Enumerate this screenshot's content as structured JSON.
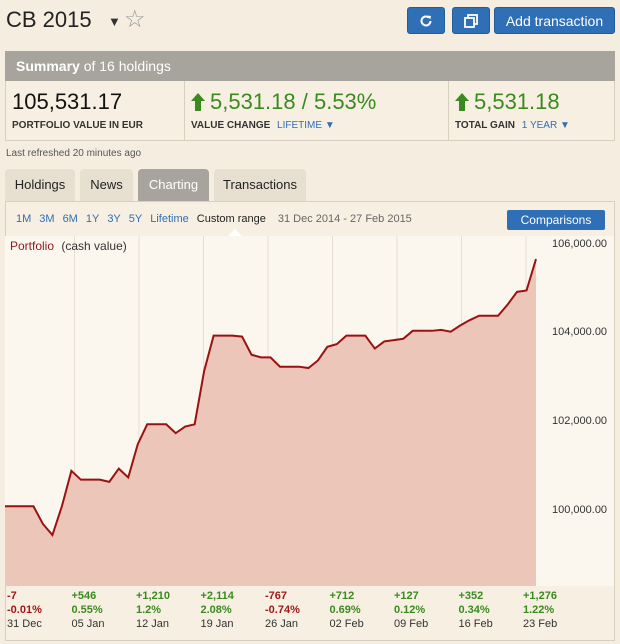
{
  "header": {
    "title": "CB 2015",
    "add_label": "Add transaction"
  },
  "summary": {
    "title": "Summary",
    "suffix": "of 16 holdings",
    "portfolio_value": "105,531.17",
    "portfolio_label": "PORTFOLIO VALUE IN EUR",
    "value_change": "5,531.18 / 5.53%",
    "value_change_label": "VALUE CHANGE",
    "value_change_period": "LIFETIME",
    "total_gain": "5,531.18",
    "total_gain_label": "TOTAL GAIN",
    "total_gain_period": "1 YEAR",
    "refreshed": "Last refreshed 20 minutes ago"
  },
  "tabs": [
    "Holdings",
    "News",
    "Charting",
    "Transactions"
  ],
  "ranges": [
    "1M",
    "3M",
    "6M",
    "1Y",
    "3Y",
    "5Y",
    "Lifetime",
    "Custom range"
  ],
  "range_dates": "31 Dec 2014 - 27 Feb 2015",
  "compare_label": "Comparisons",
  "chart_data": {
    "type": "area",
    "legend": "Portfolio",
    "legend_sub": "(cash value)",
    "y_ticks": [
      "106,000.00",
      "104,000.00",
      "102,000.00",
      "100,000.00"
    ],
    "ylim": [
      98300,
      106200
    ],
    "series": [
      {
        "name": "Portfolio",
        "values": [
          100100,
          100100,
          100100,
          100100,
          99700,
          99450,
          100100,
          100900,
          100700,
          100700,
          100700,
          100650,
          100950,
          100750,
          101500,
          101950,
          101950,
          101950,
          101750,
          101900,
          101950,
          103150,
          103950,
          103950,
          103950,
          103930,
          103520,
          103460,
          103460,
          103250,
          103250,
          103250,
          103220,
          103390,
          103700,
          103760,
          103950,
          103950,
          103950,
          103660,
          103820,
          103850,
          103880,
          104060,
          104060,
          104060,
          104080,
          104040,
          104180,
          104300,
          104400,
          104400,
          104400,
          104650,
          104940,
          104970,
          105680
        ]
      }
    ],
    "weekly": [
      {
        "change": "-7",
        "pct": "-0.01%",
        "date": "31 Dec",
        "up": false
      },
      {
        "change": "+546",
        "pct": "0.55%",
        "date": "05 Jan",
        "up": true
      },
      {
        "change": "+1,210",
        "pct": "1.2%",
        "date": "12 Jan",
        "up": true
      },
      {
        "change": "+2,114",
        "pct": "2.08%",
        "date": "19 Jan",
        "up": true
      },
      {
        "change": "-767",
        "pct": "-0.74%",
        "date": "26 Jan",
        "up": false
      },
      {
        "change": "+712",
        "pct": "0.69%",
        "date": "02 Feb",
        "up": true
      },
      {
        "change": "+127",
        "pct": "0.12%",
        "date": "09 Feb",
        "up": true
      },
      {
        "change": "+352",
        "pct": "0.34%",
        "date": "16 Feb",
        "up": true
      },
      {
        "change": "+1,276",
        "pct": "1.22%",
        "date": "23 Feb",
        "up": true
      }
    ],
    "colors": {
      "line": "#9b1111",
      "fill": "#ecc6b8",
      "positive": "#3a8a1f",
      "negative": "#a01818"
    }
  }
}
